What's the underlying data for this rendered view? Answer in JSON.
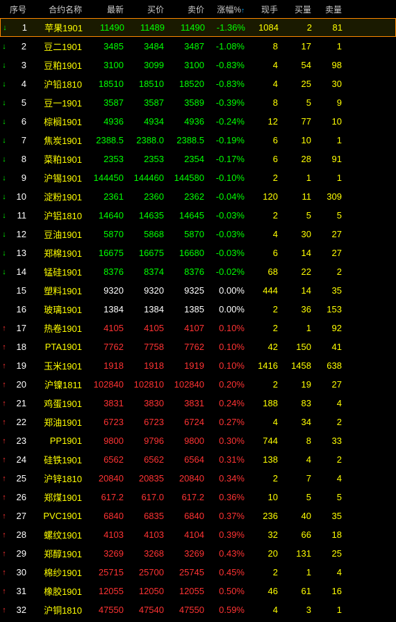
{
  "colors": {
    "background": "#000000",
    "header_text": "#cccccc",
    "white": "#ffffff",
    "red": "#ff3333",
    "green": "#00ff00",
    "yellow": "#ffff00",
    "selected_border": "#ff8800",
    "sort_indicator": "#00aaff"
  },
  "headers": {
    "seq": "序号",
    "name": "合约名称",
    "latest": "最新",
    "bid": "买价",
    "ask": "卖价",
    "change": "涨幅%",
    "hands": "现手",
    "bidvol": "买量",
    "askvol": "卖量"
  },
  "rows": [
    {
      "selected": true,
      "dir": "down",
      "seq": "1",
      "name": "苹果1901",
      "latest": "11490",
      "bid": "11489",
      "ask": "11490",
      "change": "-1.36%",
      "hands": "1084",
      "bidvol": "2",
      "askvol": "81",
      "price_color": "green"
    },
    {
      "dir": "down",
      "seq": "2",
      "name": "豆二1901",
      "latest": "3485",
      "bid": "3484",
      "ask": "3487",
      "change": "-1.08%",
      "hands": "8",
      "bidvol": "17",
      "askvol": "1",
      "price_color": "green"
    },
    {
      "dir": "down",
      "seq": "3",
      "name": "豆粕1901",
      "latest": "3100",
      "bid": "3099",
      "ask": "3100",
      "change": "-0.83%",
      "hands": "4",
      "bidvol": "54",
      "askvol": "98",
      "price_color": "green"
    },
    {
      "dir": "down",
      "seq": "4",
      "name": "沪铅1810",
      "latest": "18510",
      "bid": "18510",
      "ask": "18520",
      "change": "-0.83%",
      "hands": "4",
      "bidvol": "25",
      "askvol": "30",
      "price_color": "green"
    },
    {
      "dir": "down",
      "seq": "5",
      "name": "豆一1901",
      "latest": "3587",
      "bid": "3587",
      "ask": "3589",
      "change": "-0.39%",
      "hands": "8",
      "bidvol": "5",
      "askvol": "9",
      "price_color": "green"
    },
    {
      "dir": "down",
      "seq": "6",
      "name": "棕榈1901",
      "latest": "4936",
      "bid": "4934",
      "ask": "4936",
      "change": "-0.24%",
      "hands": "12",
      "bidvol": "77",
      "askvol": "10",
      "price_color": "green"
    },
    {
      "dir": "down",
      "seq": "7",
      "name": "焦炭1901",
      "latest": "2388.5",
      "bid": "2388.0",
      "ask": "2388.5",
      "change": "-0.19%",
      "hands": "6",
      "bidvol": "10",
      "askvol": "1",
      "price_color": "green"
    },
    {
      "dir": "down",
      "seq": "8",
      "name": "菜粕1901",
      "latest": "2353",
      "bid": "2353",
      "ask": "2354",
      "change": "-0.17%",
      "hands": "6",
      "bidvol": "28",
      "askvol": "91",
      "price_color": "green"
    },
    {
      "dir": "down",
      "seq": "9",
      "name": "沪锡1901",
      "latest": "144450",
      "bid": "144460",
      "ask": "144580",
      "change": "-0.10%",
      "hands": "2",
      "bidvol": "1",
      "askvol": "1",
      "price_color": "green"
    },
    {
      "dir": "down",
      "seq": "10",
      "name": "淀粉1901",
      "latest": "2361",
      "bid": "2360",
      "ask": "2362",
      "change": "-0.04%",
      "hands": "120",
      "bidvol": "11",
      "askvol": "309",
      "price_color": "green"
    },
    {
      "dir": "down",
      "seq": "11",
      "name": "沪铝1810",
      "latest": "14640",
      "bid": "14635",
      "ask": "14645",
      "change": "-0.03%",
      "hands": "2",
      "bidvol": "5",
      "askvol": "5",
      "price_color": "green"
    },
    {
      "dir": "down",
      "seq": "12",
      "name": "豆油1901",
      "latest": "5870",
      "bid": "5868",
      "ask": "5870",
      "change": "-0.03%",
      "hands": "4",
      "bidvol": "30",
      "askvol": "27",
      "price_color": "green"
    },
    {
      "dir": "down",
      "seq": "13",
      "name": "郑棉1901",
      "latest": "16675",
      "bid": "16675",
      "ask": "16680",
      "change": "-0.03%",
      "hands": "6",
      "bidvol": "14",
      "askvol": "27",
      "price_color": "green"
    },
    {
      "dir": "down",
      "seq": "14",
      "name": "锰硅1901",
      "latest": "8376",
      "bid": "8374",
      "ask": "8376",
      "change": "-0.02%",
      "hands": "68",
      "bidvol": "22",
      "askvol": "2",
      "price_color": "green"
    },
    {
      "dir": "flat",
      "seq": "15",
      "name": "塑料1901",
      "latest": "9320",
      "bid": "9320",
      "ask": "9325",
      "change": "0.00%",
      "hands": "444",
      "bidvol": "14",
      "askvol": "35",
      "price_color": "white"
    },
    {
      "dir": "flat",
      "seq": "16",
      "name": "玻璃1901",
      "latest": "1384",
      "bid": "1384",
      "ask": "1385",
      "change": "0.00%",
      "hands": "2",
      "bidvol": "36",
      "askvol": "153",
      "price_color": "white"
    },
    {
      "dir": "up",
      "seq": "17",
      "name": "热卷1901",
      "latest": "4105",
      "bid": "4105",
      "ask": "4107",
      "change": "0.10%",
      "hands": "2",
      "bidvol": "1",
      "askvol": "92",
      "price_color": "red"
    },
    {
      "dir": "up",
      "seq": "18",
      "name": "PTA1901",
      "latest": "7762",
      "bid": "7758",
      "ask": "7762",
      "change": "0.10%",
      "hands": "42",
      "bidvol": "150",
      "askvol": "41",
      "price_color": "red"
    },
    {
      "dir": "up",
      "seq": "19",
      "name": "玉米1901",
      "latest": "1918",
      "bid": "1918",
      "ask": "1919",
      "change": "0.10%",
      "hands": "1416",
      "bidvol": "1458",
      "askvol": "638",
      "price_color": "red"
    },
    {
      "dir": "up",
      "seq": "20",
      "name": "沪镍1811",
      "latest": "102840",
      "bid": "102810",
      "ask": "102840",
      "change": "0.20%",
      "hands": "2",
      "bidvol": "19",
      "askvol": "27",
      "price_color": "red"
    },
    {
      "dir": "up",
      "seq": "21",
      "name": "鸡蛋1901",
      "latest": "3831",
      "bid": "3830",
      "ask": "3831",
      "change": "0.24%",
      "hands": "188",
      "bidvol": "83",
      "askvol": "4",
      "price_color": "red"
    },
    {
      "dir": "up",
      "seq": "22",
      "name": "郑油1901",
      "latest": "6723",
      "bid": "6723",
      "ask": "6724",
      "change": "0.27%",
      "hands": "4",
      "bidvol": "34",
      "askvol": "2",
      "price_color": "red"
    },
    {
      "dir": "up",
      "seq": "23",
      "name": "PP1901",
      "latest": "9800",
      "bid": "9796",
      "ask": "9800",
      "change": "0.30%",
      "hands": "744",
      "bidvol": "8",
      "askvol": "33",
      "price_color": "red"
    },
    {
      "dir": "up",
      "seq": "24",
      "name": "硅铁1901",
      "latest": "6562",
      "bid": "6562",
      "ask": "6564",
      "change": "0.31%",
      "hands": "138",
      "bidvol": "4",
      "askvol": "2",
      "price_color": "red"
    },
    {
      "dir": "up",
      "seq": "25",
      "name": "沪锌1810",
      "latest": "20840",
      "bid": "20835",
      "ask": "20840",
      "change": "0.34%",
      "hands": "2",
      "bidvol": "7",
      "askvol": "4",
      "price_color": "red"
    },
    {
      "dir": "up",
      "seq": "26",
      "name": "郑煤1901",
      "latest": "617.2",
      "bid": "617.0",
      "ask": "617.2",
      "change": "0.36%",
      "hands": "10",
      "bidvol": "5",
      "askvol": "5",
      "price_color": "red"
    },
    {
      "dir": "up",
      "seq": "27",
      "name": "PVC1901",
      "latest": "6840",
      "bid": "6835",
      "ask": "6840",
      "change": "0.37%",
      "hands": "236",
      "bidvol": "40",
      "askvol": "35",
      "price_color": "red"
    },
    {
      "dir": "up",
      "seq": "28",
      "name": "螺纹1901",
      "latest": "4103",
      "bid": "4103",
      "ask": "4104",
      "change": "0.39%",
      "hands": "32",
      "bidvol": "66",
      "askvol": "18",
      "price_color": "red"
    },
    {
      "dir": "up",
      "seq": "29",
      "name": "郑醇1901",
      "latest": "3269",
      "bid": "3268",
      "ask": "3269",
      "change": "0.43%",
      "hands": "20",
      "bidvol": "131",
      "askvol": "25",
      "price_color": "red"
    },
    {
      "dir": "up",
      "seq": "30",
      "name": "棉纱1901",
      "latest": "25715",
      "bid": "25700",
      "ask": "25745",
      "change": "0.45%",
      "hands": "2",
      "bidvol": "1",
      "askvol": "4",
      "price_color": "red"
    },
    {
      "dir": "up",
      "seq": "31",
      "name": "橡胶1901",
      "latest": "12055",
      "bid": "12050",
      "ask": "12055",
      "change": "0.50%",
      "hands": "46",
      "bidvol": "61",
      "askvol": "16",
      "price_color": "red"
    },
    {
      "dir": "up",
      "seq": "32",
      "name": "沪铜1810",
      "latest": "47550",
      "bid": "47540",
      "ask": "47550",
      "change": "0.59%",
      "hands": "4",
      "bidvol": "3",
      "askvol": "1",
      "price_color": "red"
    }
  ]
}
